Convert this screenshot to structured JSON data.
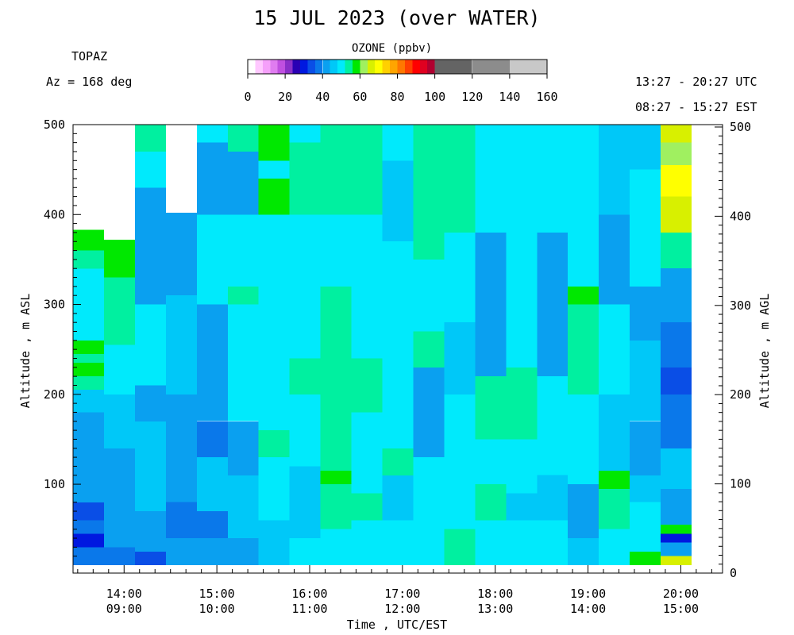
{
  "chart_data": {
    "type": "heatmap",
    "title": "15 JUL 2023 (over WATER)",
    "site": "TOPAZ",
    "azimuth": "Az = 168 deg",
    "time_range_utc": "13:27 - 20:27 UTC",
    "time_range_est": "08:27 - 15:27 EST",
    "ylabel_left": "Altitude , m ASL",
    "ylabel_right": "Altitude , m AGL",
    "xlabel": "Time , UTC/EST",
    "colorbar": {
      "title": "OZONE (ppbv)",
      "ticks": [
        "0",
        "20",
        "40",
        "60",
        "80",
        "100",
        "120",
        "140",
        "160"
      ],
      "range": [
        0,
        160
      ],
      "bins": [
        {
          "from": 0,
          "to": 4,
          "color": "#ffffff"
        },
        {
          "from": 4,
          "to": 8,
          "color": "#ffc8ff"
        },
        {
          "from": 8,
          "to": 12,
          "color": "#f5a0fa"
        },
        {
          "from": 12,
          "to": 16,
          "color": "#e07cf0"
        },
        {
          "from": 16,
          "to": 20,
          "color": "#c050e0"
        },
        {
          "from": 20,
          "to": 24,
          "color": "#8a2fc8"
        },
        {
          "from": 24,
          "to": 28,
          "color": "#2a00b4"
        },
        {
          "from": 28,
          "to": 32,
          "color": "#0018e0"
        },
        {
          "from": 32,
          "to": 36,
          "color": "#0a4ee6"
        },
        {
          "from": 36,
          "to": 40,
          "color": "#0a78ea"
        },
        {
          "from": 40,
          "to": 44,
          "color": "#0aa0f0"
        },
        {
          "from": 44,
          "to": 48,
          "color": "#00c8f8"
        },
        {
          "from": 48,
          "to": 52,
          "color": "#00eafc"
        },
        {
          "from": 52,
          "to": 56,
          "color": "#00f0a0"
        },
        {
          "from": 56,
          "to": 60,
          "color": "#00e800"
        },
        {
          "from": 60,
          "to": 64,
          "color": "#a0f060"
        },
        {
          "from": 64,
          "to": 68,
          "color": "#d8f000"
        },
        {
          "from": 68,
          "to": 72,
          "color": "#ffff00"
        },
        {
          "from": 72,
          "to": 76,
          "color": "#ffd000"
        },
        {
          "from": 76,
          "to": 80,
          "color": "#ffa500"
        },
        {
          "from": 80,
          "to": 84,
          "color": "#ff7800"
        },
        {
          "from": 84,
          "to": 88,
          "color": "#ff4000"
        },
        {
          "from": 88,
          "to": 92,
          "color": "#ff0000"
        },
        {
          "from": 92,
          "to": 96,
          "color": "#e00020"
        },
        {
          "from": 96,
          "to": 100,
          "color": "#b00030"
        },
        {
          "from": 100,
          "to": 120,
          "color": "#646464"
        },
        {
          "from": 120,
          "to": 140,
          "color": "#8c8c8c"
        },
        {
          "from": 140,
          "to": 160,
          "color": "#c8c8c8"
        }
      ]
    },
    "x_ticks": [
      {
        "utc": "14:00",
        "est": "09:00"
      },
      {
        "utc": "15:00",
        "est": "10:00"
      },
      {
        "utc": "16:00",
        "est": "11:00"
      },
      {
        "utc": "17:00",
        "est": "12:00"
      },
      {
        "utc": "18:00",
        "est": "13:00"
      },
      {
        "utc": "19:00",
        "est": "14:00"
      },
      {
        "utc": "20:00",
        "est": "15:00"
      }
    ],
    "y_ticks_left": [
      "100",
      "200",
      "300",
      "400",
      "500"
    ],
    "y_ticks_right": [
      "0",
      "100",
      "200",
      "300",
      "400",
      "500"
    ],
    "ylim_asl": [
      10,
      500
    ],
    "ylim_agl": [
      0,
      500
    ],
    "x_range": [
      "13:27",
      "20:27"
    ],
    "profile_times_utc": [
      "13:27",
      "13:47",
      "14:07",
      "14:27",
      "14:47",
      "15:07",
      "15:27",
      "15:47",
      "16:07",
      "16:27",
      "16:47",
      "17:07",
      "17:27",
      "17:47",
      "18:07",
      "18:27",
      "18:47",
      "19:07",
      "19:27",
      "19:47",
      "20:07"
    ],
    "profiles": [
      [
        {
          "from": 10,
          "to": 30,
          "value": 36
        },
        {
          "from": 30,
          "to": 45,
          "value": 30
        },
        {
          "from": 45,
          "to": 60,
          "value": 36
        },
        {
          "from": 60,
          "to": 80,
          "value": 32
        },
        {
          "from": 80,
          "to": 100,
          "value": 40
        },
        {
          "from": 100,
          "to": 130,
          "value": 40
        },
        {
          "from": 130,
          "to": 180,
          "value": 42
        },
        {
          "from": 180,
          "to": 205,
          "value": 46
        },
        {
          "from": 205,
          "to": 220,
          "value": 54
        },
        {
          "from": 220,
          "to": 235,
          "value": 58
        },
        {
          "from": 235,
          "to": 245,
          "value": 52
        },
        {
          "from": 245,
          "to": 260,
          "value": 58
        },
        {
          "from": 260,
          "to": 340,
          "value": 48
        },
        {
          "from": 340,
          "to": 360,
          "value": 53
        },
        {
          "from": 360,
          "to": 383,
          "value": 58
        },
        {
          "from": 383,
          "to": 500,
          "value": null
        }
      ],
      [
        {
          "from": 10,
          "to": 30,
          "value": 38
        },
        {
          "from": 30,
          "to": 60,
          "value": 40
        },
        {
          "from": 60,
          "to": 140,
          "value": 42
        },
        {
          "from": 140,
          "to": 200,
          "value": 44
        },
        {
          "from": 200,
          "to": 255,
          "value": 48
        },
        {
          "from": 255,
          "to": 330,
          "value": 53
        },
        {
          "from": 330,
          "to": 372,
          "value": 58
        },
        {
          "from": 372,
          "to": 500,
          "value": null
        }
      ],
      [
        {
          "from": 10,
          "to": 25,
          "value": 34
        },
        {
          "from": 25,
          "to": 70,
          "value": 40
        },
        {
          "from": 70,
          "to": 170,
          "value": 44
        },
        {
          "from": 170,
          "to": 210,
          "value": 42
        },
        {
          "from": 210,
          "to": 300,
          "value": 48
        },
        {
          "from": 300,
          "to": 430,
          "value": 40
        },
        {
          "from": 430,
          "to": 470,
          "value": 48
        },
        {
          "from": 470,
          "to": 500,
          "value": 53
        }
      ],
      [
        {
          "from": 10,
          "to": 40,
          "value": 40
        },
        {
          "from": 40,
          "to": 80,
          "value": 36
        },
        {
          "from": 80,
          "to": 130,
          "value": 42
        },
        {
          "from": 130,
          "to": 200,
          "value": 40
        },
        {
          "from": 200,
          "to": 310,
          "value": 44
        },
        {
          "from": 310,
          "to": 402,
          "value": 40
        },
        {
          "from": 402,
          "to": 500,
          "value": null
        }
      ],
      [
        {
          "from": 10,
          "to": 40,
          "value": 40
        },
        {
          "from": 40,
          "to": 70,
          "value": 36
        },
        {
          "from": 70,
          "to": 130,
          "value": 44
        },
        {
          "from": 130,
          "to": 170,
          "value": 38
        },
        {
          "from": 170,
          "to": 260,
          "value": 42
        },
        {
          "from": 260,
          "to": 300,
          "value": 40
        },
        {
          "from": 300,
          "to": 400,
          "value": 48
        },
        {
          "from": 400,
          "to": 480,
          "value": 42
        },
        {
          "from": 480,
          "to": 500,
          "value": 48
        }
      ],
      [
        {
          "from": 10,
          "to": 40,
          "value": 42
        },
        {
          "from": 40,
          "to": 110,
          "value": 44
        },
        {
          "from": 110,
          "to": 170,
          "value": 40
        },
        {
          "from": 170,
          "to": 300,
          "value": 48
        },
        {
          "from": 300,
          "to": 320,
          "value": 53
        },
        {
          "from": 320,
          "to": 400,
          "value": 48
        },
        {
          "from": 400,
          "to": 470,
          "value": 40
        },
        {
          "from": 470,
          "to": 500,
          "value": 53
        }
      ],
      [
        {
          "from": 10,
          "to": 60,
          "value": 44
        },
        {
          "from": 60,
          "to": 130,
          "value": 48
        },
        {
          "from": 130,
          "to": 160,
          "value": 53
        },
        {
          "from": 160,
          "to": 400,
          "value": 48
        },
        {
          "from": 400,
          "to": 440,
          "value": 58
        },
        {
          "from": 440,
          "to": 460,
          "value": 48
        },
        {
          "from": 460,
          "to": 500,
          "value": 58
        }
      ],
      [
        {
          "from": 10,
          "to": 40,
          "value": 48
        },
        {
          "from": 40,
          "to": 120,
          "value": 44
        },
        {
          "from": 120,
          "to": 200,
          "value": 48
        },
        {
          "from": 200,
          "to": 240,
          "value": 53
        },
        {
          "from": 240,
          "to": 300,
          "value": 48
        },
        {
          "from": 300,
          "to": 400,
          "value": 48
        },
        {
          "from": 400,
          "to": 480,
          "value": 53
        },
        {
          "from": 480,
          "to": 500,
          "value": 48
        }
      ],
      [
        {
          "from": 10,
          "to": 50,
          "value": 48
        },
        {
          "from": 50,
          "to": 100,
          "value": 53
        },
        {
          "from": 100,
          "to": 115,
          "value": 58
        },
        {
          "from": 115,
          "to": 200,
          "value": 53
        },
        {
          "from": 200,
          "to": 320,
          "value": 53
        },
        {
          "from": 320,
          "to": 400,
          "value": 48
        },
        {
          "from": 400,
          "to": 500,
          "value": 53
        }
      ],
      [
        {
          "from": 10,
          "to": 60,
          "value": 48
        },
        {
          "from": 60,
          "to": 90,
          "value": 53
        },
        {
          "from": 90,
          "to": 180,
          "value": 48
        },
        {
          "from": 180,
          "to": 240,
          "value": 53
        },
        {
          "from": 240,
          "to": 300,
          "value": 48
        },
        {
          "from": 300,
          "to": 400,
          "value": 48
        },
        {
          "from": 400,
          "to": 500,
          "value": 53
        }
      ],
      [
        {
          "from": 10,
          "to": 60,
          "value": 48
        },
        {
          "from": 60,
          "to": 110,
          "value": 44
        },
        {
          "from": 110,
          "to": 140,
          "value": 53
        },
        {
          "from": 140,
          "to": 200,
          "value": 48
        },
        {
          "from": 200,
          "to": 370,
          "value": 48
        },
        {
          "from": 370,
          "to": 460,
          "value": 44
        },
        {
          "from": 460,
          "to": 500,
          "value": 48
        }
      ],
      [
        {
          "from": 10,
          "to": 60,
          "value": 48
        },
        {
          "from": 60,
          "to": 130,
          "value": 48
        },
        {
          "from": 130,
          "to": 230,
          "value": 42
        },
        {
          "from": 230,
          "to": 270,
          "value": 53
        },
        {
          "from": 270,
          "to": 350,
          "value": 48
        },
        {
          "from": 350,
          "to": 500,
          "value": 53
        }
      ],
      [
        {
          "from": 10,
          "to": 50,
          "value": 53
        },
        {
          "from": 50,
          "to": 120,
          "value": 48
        },
        {
          "from": 120,
          "to": 200,
          "value": 48
        },
        {
          "from": 200,
          "to": 280,
          "value": 44
        },
        {
          "from": 280,
          "to": 380,
          "value": 48
        },
        {
          "from": 380,
          "to": 500,
          "value": 53
        }
      ],
      [
        {
          "from": 10,
          "to": 60,
          "value": 48
        },
        {
          "from": 60,
          "to": 100,
          "value": 53
        },
        {
          "from": 100,
          "to": 150,
          "value": 48
        },
        {
          "from": 150,
          "to": 220,
          "value": 53
        },
        {
          "from": 220,
          "to": 380,
          "value": 42
        },
        {
          "from": 380,
          "to": 500,
          "value": 48
        }
      ],
      [
        {
          "from": 10,
          "to": 60,
          "value": 48
        },
        {
          "from": 60,
          "to": 90,
          "value": 44
        },
        {
          "from": 90,
          "to": 150,
          "value": 48
        },
        {
          "from": 150,
          "to": 230,
          "value": 53
        },
        {
          "from": 230,
          "to": 330,
          "value": 48
        },
        {
          "from": 330,
          "to": 500,
          "value": 48
        }
      ],
      [
        {
          "from": 10,
          "to": 60,
          "value": 48
        },
        {
          "from": 60,
          "to": 110,
          "value": 44
        },
        {
          "from": 110,
          "to": 220,
          "value": 48
        },
        {
          "from": 220,
          "to": 310,
          "value": 42
        },
        {
          "from": 310,
          "to": 380,
          "value": 40
        },
        {
          "from": 380,
          "to": 500,
          "value": 48
        }
      ],
      [
        {
          "from": 10,
          "to": 40,
          "value": 44
        },
        {
          "from": 40,
          "to": 100,
          "value": 40
        },
        {
          "from": 100,
          "to": 200,
          "value": 48
        },
        {
          "from": 200,
          "to": 300,
          "value": 53
        },
        {
          "from": 300,
          "to": 320,
          "value": 58
        },
        {
          "from": 320,
          "to": 440,
          "value": 48
        },
        {
          "from": 440,
          "to": 500,
          "value": 48
        }
      ],
      [
        {
          "from": 10,
          "to": 50,
          "value": 48
        },
        {
          "from": 50,
          "to": 95,
          "value": 53
        },
        {
          "from": 95,
          "to": 115,
          "value": 58
        },
        {
          "from": 115,
          "to": 200,
          "value": 44
        },
        {
          "from": 200,
          "to": 300,
          "value": 48
        },
        {
          "from": 300,
          "to": 400,
          "value": 40
        },
        {
          "from": 400,
          "to": 500,
          "value": 44
        }
      ],
      [
        {
          "from": 10,
          "to": 25,
          "value": 58
        },
        {
          "from": 25,
          "to": 80,
          "value": 48
        },
        {
          "from": 80,
          "to": 110,
          "value": 44
        },
        {
          "from": 110,
          "to": 170,
          "value": 42
        },
        {
          "from": 170,
          "to": 260,
          "value": 44
        },
        {
          "from": 260,
          "to": 320,
          "value": 40
        },
        {
          "from": 320,
          "to": 450,
          "value": 48
        },
        {
          "from": 450,
          "to": 500,
          "value": 44
        }
      ],
      [
        {
          "from": 10,
          "to": 20,
          "value": 64
        },
        {
          "from": 20,
          "to": 35,
          "value": 42
        },
        {
          "from": 35,
          "to": 45,
          "value": 28
        },
        {
          "from": 45,
          "to": 55,
          "value": 58
        },
        {
          "from": 55,
          "to": 95,
          "value": 42
        },
        {
          "from": 95,
          "to": 140,
          "value": 44
        },
        {
          "from": 140,
          "to": 200,
          "value": 38
        },
        {
          "from": 200,
          "to": 230,
          "value": 32
        },
        {
          "from": 230,
          "to": 280,
          "value": 38
        },
        {
          "from": 280,
          "to": 340,
          "value": 40
        },
        {
          "from": 340,
          "to": 380,
          "value": 53
        },
        {
          "from": 380,
          "to": 420,
          "value": 64
        },
        {
          "from": 420,
          "to": 455,
          "value": 70
        },
        {
          "from": 455,
          "to": 480,
          "value": 62
        },
        {
          "from": 480,
          "to": 500,
          "value": 66
        }
      ],
      [
        {
          "from": 10,
          "to": 40,
          "value": 40
        },
        {
          "from": 40,
          "to": 55,
          "value": 58
        },
        {
          "from": 55,
          "to": 75,
          "value": 42
        },
        {
          "from": 75,
          "to": 85,
          "value": 22
        },
        {
          "from": 85,
          "to": 110,
          "value": 36
        },
        {
          "from": 110,
          "to": 140,
          "value": 40
        },
        {
          "from": 140,
          "to": 180,
          "value": 53
        },
        {
          "from": 180,
          "to": 240,
          "value": 36
        },
        {
          "from": 240,
          "to": 300,
          "value": 42
        },
        {
          "from": 300,
          "to": 330,
          "value": 30
        },
        {
          "from": 330,
          "to": 400,
          "value": 40
        },
        {
          "from": 400,
          "to": 450,
          "value": 38
        },
        {
          "from": 450,
          "to": 500,
          "value": 42
        }
      ]
    ]
  }
}
